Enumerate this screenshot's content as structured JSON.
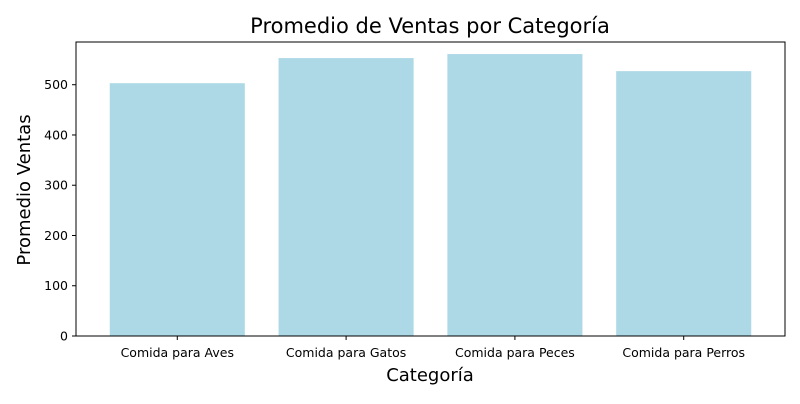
{
  "chart_data": {
    "type": "bar",
    "title": "Promedio de Ventas por Categoría",
    "xlabel": "Categoría",
    "ylabel": "Promedio Ventas",
    "categories": [
      "Comida para Aves",
      "Comida para Gatos",
      "Comida para Peces",
      "Comida para Perros"
    ],
    "values": [
      503,
      553,
      561,
      527
    ],
    "ylim": [
      0,
      585
    ],
    "yticks": [
      0,
      100,
      200,
      300,
      400,
      500
    ],
    "bar_color": "#add8e6",
    "grid": false,
    "legend": "none"
  }
}
